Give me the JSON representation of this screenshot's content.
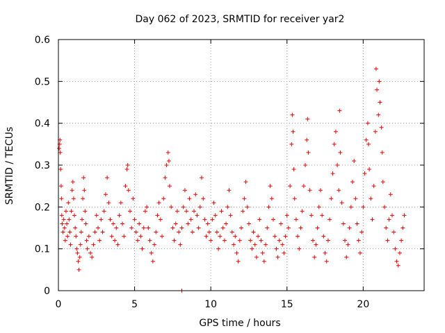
{
  "chart_data": {
    "type": "scatter",
    "title": "Day 062 of 2023, SRMTID for receiver yar2",
    "xlabel": "GPS time / hours",
    "ylabel": "SRMTID / TECUs",
    "xlim": [
      0,
      24
    ],
    "ylim": [
      0,
      0.6
    ],
    "xticks": [
      0,
      5,
      10,
      15,
      20
    ],
    "xtick_labels": [
      "0",
      "5",
      "10",
      "15",
      "20"
    ],
    "yticks": [
      0,
      0.1,
      0.2,
      0.3,
      0.4,
      0.5,
      0.6
    ],
    "ytick_labels": [
      "0",
      "0.1",
      "0.2",
      "0.3",
      "0.4",
      "0.5",
      "0.6"
    ],
    "grid": true,
    "marker": "plus",
    "color": "#ee0000",
    "series": [
      {
        "name": "SRMTID",
        "points": [
          [
            0.05,
            0.34
          ],
          [
            0.08,
            0.35
          ],
          [
            0.1,
            0.36
          ],
          [
            0.12,
            0.33
          ],
          [
            0.15,
            0.29
          ],
          [
            0.18,
            0.25
          ],
          [
            0.2,
            0.22
          ],
          [
            0.22,
            0.18
          ],
          [
            0.25,
            0.16
          ],
          [
            0.3,
            0.14
          ],
          [
            0.35,
            0.17
          ],
          [
            0.4,
            0.15
          ],
          [
            0.45,
            0.12
          ],
          [
            0.5,
            0.19
          ],
          [
            0.55,
            0.16
          ],
          [
            0.6,
            0.13
          ],
          [
            0.65,
            0.21
          ],
          [
            0.7,
            0.17
          ],
          [
            0.75,
            0.14
          ],
          [
            0.8,
            0.11
          ],
          [
            0.85,
            0.19
          ],
          [
            0.9,
            0.24
          ],
          [
            0.95,
            0.26
          ],
          [
            1.0,
            0.22
          ],
          [
            1.05,
            0.18
          ],
          [
            1.1,
            0.15
          ],
          [
            1.15,
            0.13
          ],
          [
            1.2,
            0.1
          ],
          [
            1.25,
            0.09
          ],
          [
            1.3,
            0.07
          ],
          [
            1.35,
            0.05
          ],
          [
            1.4,
            0.08
          ],
          [
            1.45,
            0.11
          ],
          [
            1.5,
            0.14
          ],
          [
            1.55,
            0.17
          ],
          [
            1.6,
            0.22
          ],
          [
            1.65,
            0.27
          ],
          [
            1.7,
            0.24
          ],
          [
            1.75,
            0.19
          ],
          [
            1.8,
            0.16
          ],
          [
            1.85,
            0.12
          ],
          [
            1.9,
            0.1
          ],
          [
            2.0,
            0.13
          ],
          [
            2.1,
            0.09
          ],
          [
            2.2,
            0.08
          ],
          [
            2.3,
            0.11
          ],
          [
            2.4,
            0.14
          ],
          [
            2.5,
            0.18
          ],
          [
            2.6,
            0.15
          ],
          [
            2.7,
            0.12
          ],
          [
            2.8,
            0.17
          ],
          [
            2.9,
            0.14
          ],
          [
            3.0,
            0.19
          ],
          [
            3.1,
            0.23
          ],
          [
            3.2,
            0.27
          ],
          [
            3.3,
            0.21
          ],
          [
            3.4,
            0.17
          ],
          [
            3.5,
            0.13
          ],
          [
            3.6,
            0.16
          ],
          [
            3.7,
            0.12
          ],
          [
            3.8,
            0.15
          ],
          [
            3.9,
            0.11
          ],
          [
            4.0,
            0.18
          ],
          [
            4.1,
            0.21
          ],
          [
            4.2,
            0.16
          ],
          [
            4.3,
            0.13
          ],
          [
            4.4,
            0.25
          ],
          [
            4.5,
            0.29
          ],
          [
            4.55,
            0.3
          ],
          [
            4.6,
            0.24
          ],
          [
            4.7,
            0.19
          ],
          [
            4.8,
            0.15
          ],
          [
            4.9,
            0.22
          ],
          [
            5.0,
            0.17
          ],
          [
            5.1,
            0.14
          ],
          [
            5.2,
            0.12
          ],
          [
            5.3,
            0.16
          ],
          [
            5.4,
            0.13
          ],
          [
            5.5,
            0.1
          ],
          [
            5.6,
            0.15
          ],
          [
            5.7,
            0.19
          ],
          [
            5.8,
            0.2
          ],
          [
            5.9,
            0.15
          ],
          [
            6.0,
            0.12
          ],
          [
            6.1,
            0.09
          ],
          [
            6.2,
            0.07
          ],
          [
            6.3,
            0.11
          ],
          [
            6.4,
            0.14
          ],
          [
            6.5,
            0.18
          ],
          [
            6.6,
            0.21
          ],
          [
            6.7,
            0.17
          ],
          [
            6.8,
            0.13
          ],
          [
            6.9,
            0.22
          ],
          [
            7.0,
            0.27
          ],
          [
            7.1,
            0.3
          ],
          [
            7.2,
            0.33
          ],
          [
            7.25,
            0.31
          ],
          [
            7.3,
            0.25
          ],
          [
            7.4,
            0.2
          ],
          [
            7.5,
            0.15
          ],
          [
            7.6,
            0.12
          ],
          [
            7.7,
            0.16
          ],
          [
            7.8,
            0.19
          ],
          [
            7.9,
            0.14
          ],
          [
            8.0,
            0.11
          ],
          [
            8.1,
            0.15
          ],
          [
            8.2,
            0.2
          ],
          [
            8.3,
            0.24
          ],
          [
            8.4,
            0.19
          ],
          [
            8.5,
            0.16
          ],
          [
            8.6,
            0.22
          ],
          [
            8.7,
            0.17
          ],
          [
            8.8,
            0.14
          ],
          [
            8.9,
            0.19
          ],
          [
            9.0,
            0.23
          ],
          [
            9.1,
            0.18
          ],
          [
            9.2,
            0.15
          ],
          [
            9.3,
            0.2
          ],
          [
            9.4,
            0.27
          ],
          [
            9.5,
            0.22
          ],
          [
            9.6,
            0.17
          ],
          [
            9.7,
            0.13
          ],
          [
            9.8,
            0.16
          ],
          [
            9.9,
            0.14
          ],
          [
            10.0,
            0.12
          ],
          [
            10.1,
            0.17
          ],
          [
            10.2,
            0.21
          ],
          [
            10.3,
            0.18
          ],
          [
            10.4,
            0.14
          ],
          [
            10.5,
            0.1
          ],
          [
            10.6,
            0.13
          ],
          [
            10.7,
            0.19
          ],
          [
            10.8,
            0.15
          ],
          [
            10.9,
            0.12
          ],
          [
            11.0,
            0.16
          ],
          [
            11.1,
            0.2
          ],
          [
            11.2,
            0.24
          ],
          [
            11.3,
            0.18
          ],
          [
            11.4,
            0.14
          ],
          [
            11.5,
            0.11
          ],
          [
            11.6,
            0.13
          ],
          [
            11.7,
            0.09
          ],
          [
            11.8,
            0.07
          ],
          [
            11.9,
            0.12
          ],
          [
            12.0,
            0.15
          ],
          [
            12.1,
            0.19
          ],
          [
            12.2,
            0.22
          ],
          [
            12.3,
            0.26
          ],
          [
            12.4,
            0.2
          ],
          [
            12.5,
            0.16
          ],
          [
            12.6,
            0.12
          ],
          [
            12.7,
            0.1
          ],
          [
            12.8,
            0.14
          ],
          [
            12.9,
            0.11
          ],
          [
            13.0,
            0.08
          ],
          [
            13.1,
            0.13
          ],
          [
            13.2,
            0.17
          ],
          [
            13.3,
            0.12
          ],
          [
            13.4,
            0.09
          ],
          [
            13.5,
            0.07
          ],
          [
            13.6,
            0.11
          ],
          [
            13.7,
            0.15
          ],
          [
            13.8,
            0.2
          ],
          [
            13.9,
            0.25
          ],
          [
            14.0,
            0.22
          ],
          [
            14.1,
            0.17
          ],
          [
            14.2,
            0.13
          ],
          [
            14.3,
            0.1
          ],
          [
            14.4,
            0.08
          ],
          [
            14.5,
            0.12
          ],
          [
            14.6,
            0.16
          ],
          [
            14.7,
            0.11
          ],
          [
            14.8,
            0.09
          ],
          [
            14.9,
            0.13
          ],
          [
            15.0,
            0.18
          ],
          [
            15.1,
            0.15
          ],
          [
            15.2,
            0.25
          ],
          [
            15.3,
            0.35
          ],
          [
            15.35,
            0.42
          ],
          [
            15.4,
            0.38
          ],
          [
            15.45,
            0.29
          ],
          [
            15.5,
            0.22
          ],
          [
            15.6,
            0.17
          ],
          [
            15.7,
            0.13
          ],
          [
            15.8,
            0.1
          ],
          [
            15.9,
            0.15
          ],
          [
            16.0,
            0.19
          ],
          [
            16.1,
            0.25
          ],
          [
            16.2,
            0.3
          ],
          [
            16.3,
            0.36
          ],
          [
            16.35,
            0.41
          ],
          [
            16.4,
            0.33
          ],
          [
            16.5,
            0.24
          ],
          [
            16.6,
            0.18
          ],
          [
            16.7,
            0.12
          ],
          [
            16.8,
            0.08
          ],
          [
            16.9,
            0.11
          ],
          [
            17.0,
            0.15
          ],
          [
            17.1,
            0.2
          ],
          [
            17.2,
            0.24
          ],
          [
            17.3,
            0.18
          ],
          [
            17.4,
            0.13
          ],
          [
            17.5,
            0.09
          ],
          [
            17.6,
            0.07
          ],
          [
            17.7,
            0.12
          ],
          [
            17.8,
            0.17
          ],
          [
            17.9,
            0.22
          ],
          [
            18.0,
            0.28
          ],
          [
            18.1,
            0.35
          ],
          [
            18.2,
            0.38
          ],
          [
            18.3,
            0.3
          ],
          [
            18.4,
            0.24
          ],
          [
            18.45,
            0.43
          ],
          [
            18.5,
            0.33
          ],
          [
            18.6,
            0.21
          ],
          [
            18.7,
            0.16
          ],
          [
            18.8,
            0.12
          ],
          [
            18.9,
            0.08
          ],
          [
            19.0,
            0.11
          ],
          [
            19.1,
            0.15
          ],
          [
            19.2,
            0.2
          ],
          [
            19.3,
            0.26
          ],
          [
            19.4,
            0.31
          ],
          [
            19.5,
            0.22
          ],
          [
            19.6,
            0.16
          ],
          [
            19.7,
            0.12
          ],
          [
            19.8,
            0.09
          ],
          [
            19.9,
            0.14
          ],
          [
            20.0,
            0.2
          ],
          [
            20.1,
            0.28
          ],
          [
            20.2,
            0.36
          ],
          [
            20.3,
            0.4
          ],
          [
            20.35,
            0.35
          ],
          [
            20.4,
            0.29
          ],
          [
            20.5,
            0.22
          ],
          [
            20.6,
            0.17
          ],
          [
            20.7,
            0.25
          ],
          [
            20.8,
            0.38
          ],
          [
            20.85,
            0.53
          ],
          [
            20.9,
            0.48
          ],
          [
            21.0,
            0.42
          ],
          [
            21.05,
            0.5
          ],
          [
            21.1,
            0.45
          ],
          [
            21.2,
            0.39
          ],
          [
            21.25,
            0.33
          ],
          [
            21.3,
            0.26
          ],
          [
            21.4,
            0.2
          ],
          [
            21.5,
            0.15
          ],
          [
            21.6,
            0.12
          ],
          [
            21.7,
            0.17
          ],
          [
            21.8,
            0.23
          ],
          [
            21.9,
            0.18
          ],
          [
            22.0,
            0.14
          ],
          [
            22.1,
            0.1
          ],
          [
            22.2,
            0.07
          ],
          [
            22.3,
            0.06
          ],
          [
            22.4,
            0.09
          ],
          [
            22.5,
            0.12
          ],
          [
            22.6,
            0.15
          ],
          [
            22.7,
            0.18
          ],
          [
            8.1,
            0.0
          ]
        ]
      }
    ]
  }
}
